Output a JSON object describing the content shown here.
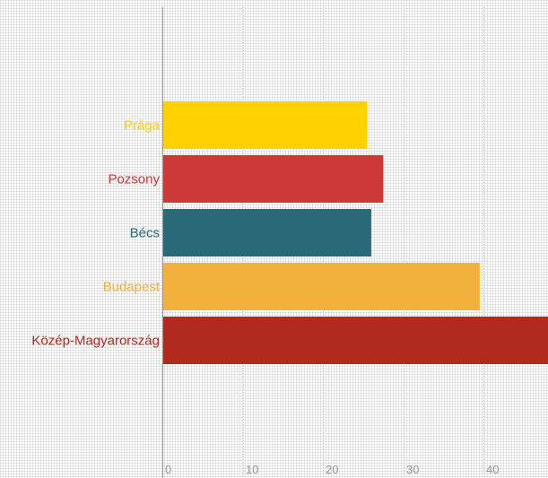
{
  "chart_data": {
    "type": "bar",
    "orientation": "horizontal",
    "categories": [
      "Prága",
      "Pozsony",
      "Bécs",
      "Budapest",
      "Közép-Magyarország"
    ],
    "values": [
      25.5,
      27.5,
      26.0,
      39.5,
      48.0
    ],
    "colors": [
      "#FFD100",
      "#CC3A38",
      "#2A6A78",
      "#F2B13C",
      "#B02A1E"
    ],
    "xlim": [
      0,
      48
    ],
    "xticks": [
      0,
      10,
      20,
      30,
      40
    ],
    "grid": "vertical",
    "title": "",
    "xlabel": "",
    "ylabel": ""
  }
}
